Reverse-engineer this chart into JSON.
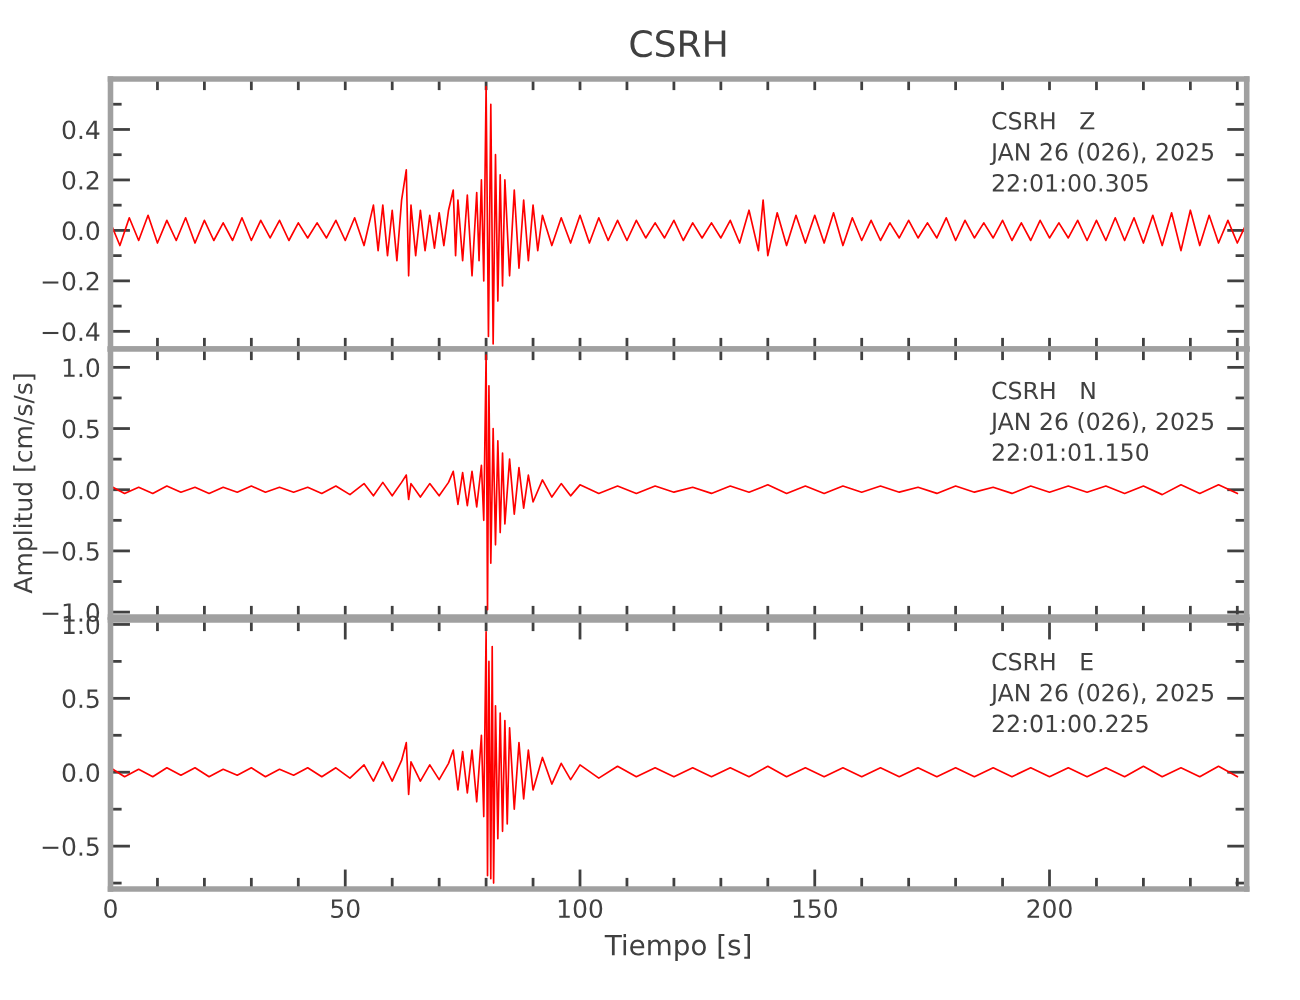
{
  "chart_data": [
    {
      "type": "line",
      "title": "CSRH",
      "tick_labels": "y",
      "grid": false,
      "marker": "none",
      "line_style": "solid",
      "annotations": [
        "CSRH   Z",
        "JAN 26 (026), 2025",
        "22:01:00.305"
      ],
      "xlim": [
        0,
        242
      ],
      "xticks": [
        0,
        {
          "value": 10,
          "label": null
        },
        {
          "value": 20,
          "label": null
        },
        {
          "value": 30,
          "label": null
        },
        {
          "value": 40,
          "label": null
        },
        {
          "value": 50,
          "label": null
        },
        {
          "value": 60,
          "label": null
        },
        {
          "value": 70,
          "label": null
        },
        {
          "value": 80,
          "label": null
        },
        {
          "value": 90,
          "label": null
        },
        {
          "value": 100,
          "label": null
        },
        {
          "value": 110,
          "label": null
        },
        {
          "value": 120,
          "label": null
        },
        {
          "value": 130,
          "label": null
        },
        {
          "value": 140,
          "label": null
        },
        {
          "value": 150,
          "label": null
        },
        {
          "value": 160,
          "label": null
        },
        {
          "value": 170,
          "label": null
        },
        {
          "value": 180,
          "label": null
        },
        {
          "value": 190,
          "label": null
        },
        {
          "value": 200,
          "label": null
        },
        {
          "value": 210,
          "label": null
        },
        {
          "value": 220,
          "label": null
        },
        {
          "value": 230,
          "label": null
        },
        {
          "value": 240,
          "label": null
        }
      ],
      "ylim": [
        -0.47,
        0.6
      ],
      "yticks": [
        {
          "value": -0.4,
          "label": "−0.4"
        },
        {
          "value": -0.3,
          "label": null
        },
        {
          "value": -0.2,
          "label": "−0.2"
        },
        {
          "value": -0.1,
          "label": null
        },
        {
          "value": 0,
          "label": "0.0"
        },
        {
          "value": 0.1,
          "label": null
        },
        {
          "value": 0.2,
          "label": "0.2"
        },
        {
          "value": 0.3,
          "label": null
        },
        {
          "value": 0.4,
          "label": "0.4"
        },
        {
          "value": 0.5,
          "label": null
        }
      ],
      "series": [
        {
          "color": "#ff0000",
          "x": [
            0,
            2,
            4,
            6,
            8,
            10,
            12,
            14,
            16,
            18,
            20,
            22,
            24,
            26,
            28,
            30,
            32,
            34,
            36,
            38,
            40,
            42,
            44,
            46,
            48,
            50,
            52,
            54,
            56,
            57,
            58,
            59,
            60,
            61,
            62,
            63,
            63.5,
            64,
            65,
            66,
            67,
            68,
            69,
            70,
            71,
            72,
            73,
            73.5,
            74,
            75,
            76,
            77,
            78,
            78.5,
            79,
            79.5,
            80,
            80.5,
            81,
            81.5,
            82,
            82.5,
            83,
            83.5,
            84,
            85,
            86,
            87,
            88,
            89,
            90,
            91,
            92,
            94,
            96,
            98,
            100,
            102,
            104,
            106,
            108,
            110,
            112,
            114,
            116,
            118,
            120,
            122,
            124,
            126,
            128,
            130,
            132,
            134,
            136,
            138,
            139,
            140,
            142,
            144,
            146,
            148,
            150,
            152,
            154,
            156,
            158,
            160,
            162,
            164,
            166,
            168,
            170,
            172,
            174,
            176,
            178,
            180,
            182,
            184,
            186,
            188,
            190,
            192,
            194,
            196,
            198,
            200,
            202,
            204,
            206,
            208,
            210,
            212,
            214,
            216,
            218,
            220,
            222,
            224,
            226,
            228,
            230,
            232,
            234,
            236,
            238,
            240,
            242
          ],
          "values": [
            0.03,
            -0.06,
            0.05,
            -0.04,
            0.06,
            -0.05,
            0.04,
            -0.04,
            0.05,
            -0.05,
            0.04,
            -0.04,
            0.03,
            -0.04,
            0.05,
            -0.04,
            0.04,
            -0.03,
            0.04,
            -0.04,
            0.03,
            -0.03,
            0.03,
            -0.03,
            0.04,
            -0.04,
            0.05,
            -0.06,
            0.1,
            -0.08,
            0.1,
            -0.1,
            0.08,
            -0.12,
            0.12,
            0.24,
            -0.18,
            0.1,
            -0.1,
            0.08,
            -0.08,
            0.06,
            -0.07,
            0.07,
            -0.06,
            0.08,
            0.16,
            -0.1,
            0.12,
            -0.12,
            0.14,
            -0.18,
            0.15,
            -0.12,
            0.2,
            -0.2,
            0.57,
            -0.42,
            0.5,
            -0.45,
            0.3,
            -0.28,
            0.22,
            -0.22,
            0.2,
            -0.18,
            0.16,
            -0.15,
            0.12,
            -0.12,
            0.1,
            -0.08,
            0.06,
            -0.06,
            0.05,
            -0.05,
            0.06,
            -0.05,
            0.05,
            -0.04,
            0.04,
            -0.04,
            0.04,
            -0.03,
            0.03,
            -0.03,
            0.04,
            -0.04,
            0.03,
            -0.03,
            0.03,
            -0.03,
            0.04,
            -0.05,
            0.08,
            -0.08,
            0.12,
            -0.1,
            0.07,
            -0.06,
            0.06,
            -0.05,
            0.06,
            -0.05,
            0.07,
            -0.06,
            0.05,
            -0.04,
            0.04,
            -0.04,
            0.03,
            -0.03,
            0.04,
            -0.03,
            0.03,
            -0.03,
            0.05,
            -0.04,
            0.04,
            -0.03,
            0.03,
            -0.03,
            0.04,
            -0.04,
            0.03,
            -0.04,
            0.04,
            -0.03,
            0.03,
            -0.03,
            0.04,
            -0.04,
            0.04,
            -0.04,
            0.05,
            -0.04,
            0.05,
            -0.05,
            0.06,
            -0.06,
            0.07,
            -0.08,
            0.08,
            -0.06,
            0.06,
            -0.05,
            0.04,
            -0.05,
            0.03
          ]
        }
      ]
    },
    {
      "type": "line",
      "ylabel": "Amplitud [cm/s/s]",
      "tick_labels": "y",
      "grid": false,
      "marker": "none",
      "line_style": "solid",
      "annotations": [
        "CSRH   N",
        "JAN 26 (026), 2025",
        "22:01:01.150"
      ],
      "xlim": [
        0,
        242
      ],
      "xticks": [
        0,
        {
          "value": 10,
          "label": null
        },
        {
          "value": 20,
          "label": null
        },
        {
          "value": 30,
          "label": null
        },
        {
          "value": 40,
          "label": null
        },
        {
          "value": 50,
          "label": null
        },
        {
          "value": 60,
          "label": null
        },
        {
          "value": 70,
          "label": null
        },
        {
          "value": 80,
          "label": null
        },
        {
          "value": 90,
          "label": null
        },
        {
          "value": 100,
          "label": null
        },
        {
          "value": 110,
          "label": null
        },
        {
          "value": 120,
          "label": null
        },
        {
          "value": 130,
          "label": null
        },
        {
          "value": 140,
          "label": null
        },
        {
          "value": 150,
          "label": null
        },
        {
          "value": 160,
          "label": null
        },
        {
          "value": 170,
          "label": null
        },
        {
          "value": 180,
          "label": null
        },
        {
          "value": 190,
          "label": null
        },
        {
          "value": 200,
          "label": null
        },
        {
          "value": 210,
          "label": null
        },
        {
          "value": 220,
          "label": null
        },
        {
          "value": 230,
          "label": null
        },
        {
          "value": 240,
          "label": null
        }
      ],
      "ylim": [
        -1.04,
        1.15
      ],
      "yticks": [
        {
          "value": -1.0,
          "label": "−1.0"
        },
        {
          "value": -0.75,
          "label": null
        },
        {
          "value": -0.5,
          "label": "−0.5"
        },
        {
          "value": -0.25,
          "label": null
        },
        {
          "value": 0,
          "label": "0.0"
        },
        {
          "value": 0.25,
          "label": null
        },
        {
          "value": 0.5,
          "label": "0.5"
        },
        {
          "value": 0.75,
          "label": null
        },
        {
          "value": 1.0,
          "label": "1.0"
        }
      ],
      "series": [
        {
          "color": "#ff0000",
          "x": [
            0,
            3,
            6,
            9,
            12,
            15,
            18,
            21,
            24,
            27,
            30,
            33,
            36,
            39,
            42,
            45,
            48,
            51,
            54,
            56,
            58,
            60,
            62,
            63,
            63.5,
            64,
            66,
            68,
            70,
            72,
            73,
            74,
            75,
            76,
            77,
            78,
            79,
            79.5,
            80,
            80.3,
            80.6,
            81,
            81.5,
            82,
            82.5,
            83,
            83.5,
            84,
            85,
            86,
            87,
            88,
            89,
            90,
            92,
            94,
            96,
            98,
            100,
            104,
            108,
            112,
            116,
            120,
            124,
            128,
            132,
            136,
            140,
            144,
            148,
            152,
            156,
            160,
            164,
            168,
            172,
            176,
            180,
            184,
            188,
            192,
            196,
            200,
            204,
            208,
            212,
            216,
            220,
            224,
            228,
            232,
            236,
            240
          ],
          "values": [
            0.03,
            -0.03,
            0.02,
            -0.03,
            0.03,
            -0.02,
            0.02,
            -0.03,
            0.02,
            -0.02,
            0.03,
            -0.02,
            0.02,
            -0.02,
            0.02,
            -0.03,
            0.03,
            -0.04,
            0.05,
            -0.05,
            0.06,
            -0.05,
            0.06,
            0.12,
            -0.08,
            0.05,
            -0.06,
            0.05,
            -0.05,
            0.06,
            0.15,
            -0.12,
            0.14,
            -0.13,
            0.15,
            -0.14,
            0.2,
            -0.25,
            1.1,
            -0.98,
            0.85,
            -0.6,
            0.5,
            -0.45,
            0.4,
            -0.35,
            0.3,
            -0.28,
            0.25,
            -0.2,
            0.18,
            -0.15,
            0.12,
            -0.1,
            0.08,
            -0.06,
            0.05,
            -0.05,
            0.04,
            -0.03,
            0.03,
            -0.03,
            0.03,
            -0.02,
            0.02,
            -0.03,
            0.03,
            -0.02,
            0.04,
            -0.03,
            0.03,
            -0.03,
            0.03,
            -0.02,
            0.03,
            -0.02,
            0.02,
            -0.03,
            0.03,
            -0.02,
            0.02,
            -0.03,
            0.03,
            -0.02,
            0.03,
            -0.02,
            0.03,
            -0.03,
            0.03,
            -0.04,
            0.04,
            -0.03,
            0.04,
            -0.03
          ]
        }
      ]
    },
    {
      "type": "line",
      "xlabel": "Tiempo [s]",
      "grid": false,
      "marker": "none",
      "line_style": "solid",
      "annotations": [
        "CSRH   E",
        "JAN 26 (026), 2025",
        "22:01:00.225"
      ],
      "xlim": [
        0,
        242
      ],
      "xticks": [
        0,
        {
          "value": 10,
          "label": null
        },
        {
          "value": 20,
          "label": null
        },
        {
          "value": 30,
          "label": null
        },
        {
          "value": 40,
          "label": null
        },
        50,
        {
          "value": 60,
          "label": null
        },
        {
          "value": 70,
          "label": null
        },
        {
          "value": 80,
          "label": null
        },
        {
          "value": 90,
          "label": null
        },
        100,
        {
          "value": 110,
          "label": null
        },
        {
          "value": 120,
          "label": null
        },
        {
          "value": 130,
          "label": null
        },
        {
          "value": 140,
          "label": null
        },
        150,
        {
          "value": 160,
          "label": null
        },
        {
          "value": 170,
          "label": null
        },
        {
          "value": 180,
          "label": null
        },
        {
          "value": 190,
          "label": null
        },
        200,
        {
          "value": 210,
          "label": null
        },
        {
          "value": 220,
          "label": null
        },
        {
          "value": 230,
          "label": null
        },
        {
          "value": 240,
          "label": null
        }
      ],
      "ylim": [
        -0.79,
        1.03
      ],
      "yticks": [
        {
          "value": -0.75,
          "label": null
        },
        {
          "value": -0.5,
          "label": "−0.5"
        },
        {
          "value": -0.25,
          "label": null
        },
        {
          "value": 0,
          "label": "0.0"
        },
        {
          "value": 0.25,
          "label": null
        },
        {
          "value": 0.5,
          "label": "0.5"
        },
        {
          "value": 0.75,
          "label": null
        },
        {
          "value": 1.0,
          "label": "1.0"
        }
      ],
      "series": [
        {
          "color": "#ff0000",
          "x": [
            0,
            3,
            6,
            9,
            12,
            15,
            18,
            21,
            24,
            27,
            30,
            33,
            36,
            39,
            42,
            45,
            48,
            51,
            54,
            56,
            58,
            60,
            62,
            63,
            63.5,
            64,
            66,
            68,
            70,
            72,
            73,
            74,
            75,
            76,
            77,
            78,
            79,
            79.5,
            80,
            80.3,
            80.6,
            81,
            81.3,
            81.6,
            82,
            82.5,
            83,
            83.5,
            84,
            84.5,
            85,
            86,
            87,
            88,
            89,
            90,
            92,
            94,
            96,
            98,
            100,
            104,
            108,
            112,
            116,
            120,
            124,
            128,
            132,
            136,
            140,
            144,
            148,
            152,
            156,
            160,
            164,
            168,
            172,
            176,
            180,
            184,
            188,
            192,
            196,
            200,
            204,
            208,
            212,
            216,
            220,
            224,
            228,
            232,
            236,
            240
          ],
          "values": [
            0.03,
            -0.03,
            0.02,
            -0.03,
            0.03,
            -0.02,
            0.03,
            -0.03,
            0.02,
            -0.02,
            0.03,
            -0.03,
            0.02,
            -0.02,
            0.03,
            -0.03,
            0.03,
            -0.04,
            0.05,
            -0.06,
            0.07,
            -0.06,
            0.08,
            0.2,
            -0.15,
            0.07,
            -0.06,
            0.05,
            -0.05,
            0.06,
            0.15,
            -0.12,
            0.14,
            -0.14,
            0.15,
            -0.2,
            0.25,
            -0.3,
            0.95,
            -0.7,
            0.75,
            -0.72,
            0.85,
            -0.75,
            0.45,
            -0.45,
            0.4,
            -0.4,
            0.35,
            -0.35,
            0.3,
            -0.25,
            0.2,
            -0.18,
            0.15,
            -0.12,
            0.1,
            -0.08,
            0.06,
            -0.05,
            0.05,
            -0.04,
            0.04,
            -0.03,
            0.03,
            -0.03,
            0.03,
            -0.03,
            0.03,
            -0.03,
            0.04,
            -0.03,
            0.03,
            -0.03,
            0.03,
            -0.03,
            0.03,
            -0.03,
            0.03,
            -0.03,
            0.03,
            -0.03,
            0.03,
            -0.03,
            0.03,
            -0.03,
            0.03,
            -0.03,
            0.03,
            -0.03,
            0.04,
            -0.03,
            0.03,
            -0.03,
            0.04,
            -0.03
          ]
        }
      ]
    }
  ]
}
